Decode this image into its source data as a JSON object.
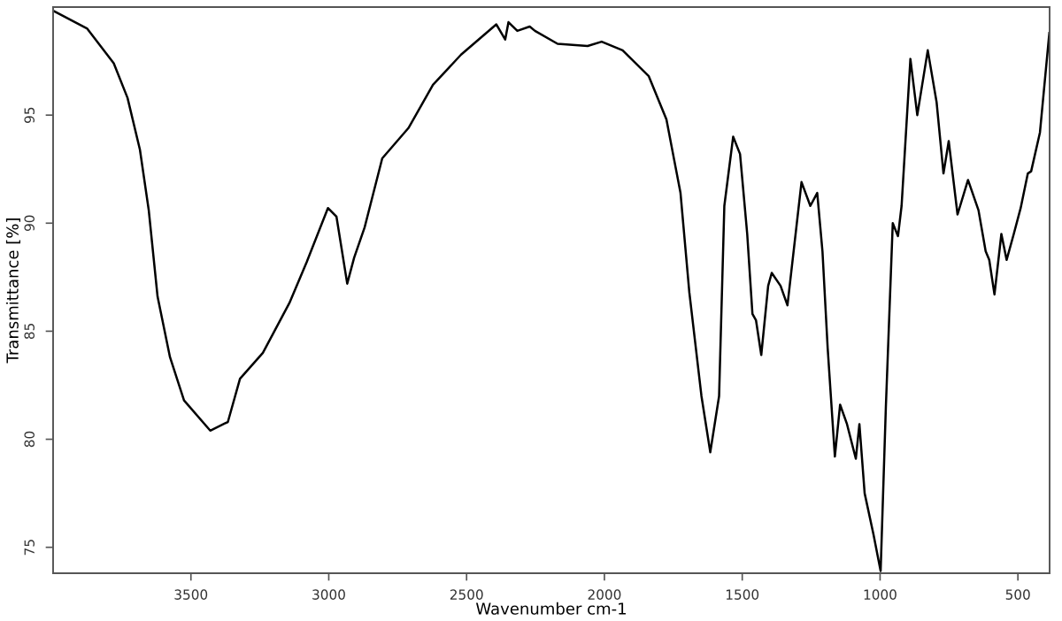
{
  "chart_data": {
    "type": "line",
    "xlabel": "Wavenumber cm-1",
    "ylabel": "Transmittance [%]",
    "xlim": [
      4000,
      385
    ],
    "ylim": [
      73.8,
      100
    ],
    "xticks": [
      3500,
      3000,
      2500,
      2000,
      1500,
      1000,
      500
    ],
    "yticks": [
      75,
      80,
      85,
      90,
      95
    ],
    "grid": false,
    "legend": false,
    "marker": "none",
    "line_style": "solid",
    "series": [
      {
        "color": "#000000",
        "x": [
          3995,
          3876,
          3780,
          3730,
          3685,
          3653,
          3621,
          3576,
          3525,
          3430,
          3366,
          3322,
          3239,
          3143,
          3080,
          3003,
          2972,
          2933,
          2908,
          2870,
          2806,
          2711,
          2622,
          2520,
          2392,
          2360,
          2348,
          2316,
          2271,
          2252,
          2170,
          2061,
          2010,
          1934,
          1839,
          1775,
          1724,
          1692,
          1648,
          1616,
          1584,
          1565,
          1533,
          1508,
          1482,
          1463,
          1450,
          1431,
          1406,
          1393,
          1361,
          1336,
          1285,
          1253,
          1228,
          1209,
          1190,
          1164,
          1145,
          1120,
          1088,
          1075,
          1056,
          1024,
          998,
          979,
          954,
          935,
          922,
          890,
          865,
          827,
          795,
          770,
          751,
          719,
          681,
          643,
          617,
          604,
          585,
          560,
          541,
          515,
          490,
          464,
          452,
          420,
          386
        ],
        "values": [
          99.8,
          99.0,
          97.4,
          95.8,
          93.4,
          90.6,
          86.6,
          83.8,
          81.8,
          80.4,
          80.8,
          82.8,
          84.0,
          86.3,
          88.2,
          90.7,
          90.3,
          87.2,
          88.4,
          89.8,
          93.0,
          94.4,
          96.4,
          97.8,
          99.2,
          98.5,
          99.3,
          98.9,
          99.1,
          98.9,
          98.3,
          98.2,
          98.4,
          98.0,
          96.8,
          94.8,
          91.4,
          86.8,
          82.0,
          79.4,
          82.0,
          90.8,
          94.0,
          93.2,
          89.5,
          85.8,
          85.5,
          83.9,
          87.1,
          87.7,
          87.1,
          86.2,
          91.9,
          90.8,
          91.4,
          88.7,
          84.2,
          79.2,
          81.6,
          80.7,
          79.1,
          80.7,
          77.5,
          75.6,
          73.9,
          81.5,
          90.0,
          89.4,
          90.8,
          97.6,
          95.0,
          98.0,
          95.6,
          92.3,
          93.8,
          90.4,
          92.0,
          90.6,
          88.7,
          88.3,
          86.7,
          89.5,
          88.3,
          89.5,
          90.7,
          92.3,
          92.4,
          94.2,
          98.8
        ]
      }
    ]
  }
}
